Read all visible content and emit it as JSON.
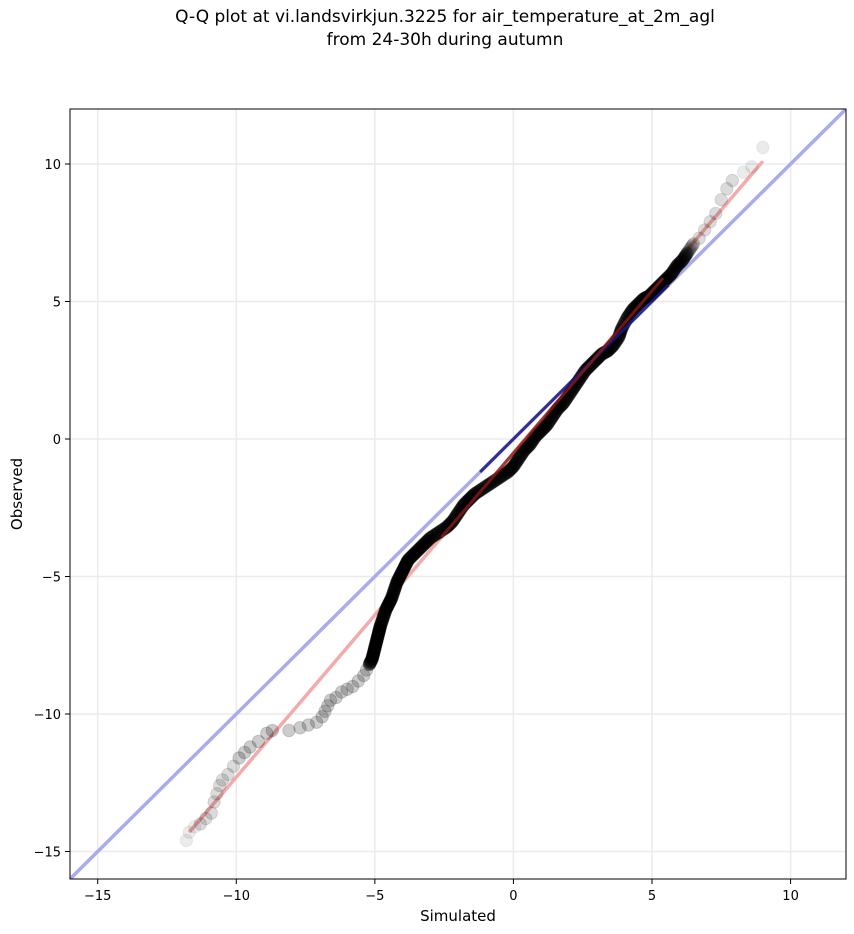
{
  "title_line1": "Q-Q plot at vi.landsvirkjun.3225 for air_temperature_at_2m_agl",
  "title_line2": "from 24-30h during autumn",
  "colors": {
    "identity_line": "#aaaaf0",
    "fit_line": "#f5aaaa",
    "points": "#000000",
    "center_line": "#1a1a80",
    "center_fit": "#8b1a1a",
    "grid": "#ebebeb"
  },
  "chart_data": {
    "type": "scatter",
    "title": "Q-Q plot at vi.landsvirkjun.3225 for air_temperature_at_2m_agl\nfrom 24-30h during autumn",
    "xlabel": "Simulated",
    "ylabel": "Observed",
    "xlim": [
      -16,
      12
    ],
    "ylim": [
      -16,
      12
    ],
    "xticks": [
      -15,
      -10,
      -5,
      0,
      5,
      10
    ],
    "yticks": [
      -15,
      -10,
      -5,
      0,
      5,
      10
    ],
    "grid": true,
    "identity_line": {
      "x": [
        -16,
        12
      ],
      "y": [
        -16,
        12
      ]
    },
    "fit_line": {
      "x": [
        -11.7,
        9.0
      ],
      "y": [
        -14.3,
        10.1
      ]
    },
    "quantiles": [
      [
        -11.8,
        -14.6
      ],
      [
        -11.7,
        -14.3
      ],
      [
        -11.5,
        -14.1
      ],
      [
        -11.3,
        -14.0
      ],
      [
        -11.1,
        -13.8
      ],
      [
        -10.9,
        -13.6
      ],
      [
        -10.8,
        -13.2
      ],
      [
        -10.7,
        -12.9
      ],
      [
        -10.6,
        -12.6
      ],
      [
        -10.5,
        -12.4
      ],
      [
        -10.3,
        -12.2
      ],
      [
        -10.1,
        -11.9
      ],
      [
        -9.9,
        -11.6
      ],
      [
        -9.7,
        -11.4
      ],
      [
        -9.5,
        -11.2
      ],
      [
        -9.2,
        -11.0
      ],
      [
        -8.9,
        -10.7
      ],
      [
        -8.7,
        -10.6
      ],
      [
        -8.1,
        -10.6
      ],
      [
        -7.7,
        -10.5
      ],
      [
        -7.4,
        -10.4
      ],
      [
        -7.1,
        -10.3
      ],
      [
        -6.9,
        -10.1
      ],
      [
        -6.8,
        -9.9
      ],
      [
        -6.7,
        -9.7
      ],
      [
        -6.6,
        -9.5
      ],
      [
        -6.4,
        -9.4
      ],
      [
        -6.2,
        -9.2
      ],
      [
        -6.0,
        -9.1
      ],
      [
        -5.8,
        -9.0
      ],
      [
        -5.6,
        -8.8
      ],
      [
        -5.4,
        -8.6
      ],
      [
        -5.3,
        -8.4
      ],
      [
        -5.2,
        -8.2
      ],
      [
        -5.1,
        -8.0
      ],
      [
        -5.05,
        -7.8
      ],
      [
        -5.0,
        -7.6
      ],
      [
        -4.95,
        -7.4
      ],
      [
        -4.9,
        -7.2
      ],
      [
        -4.85,
        -7.0
      ],
      [
        -4.8,
        -6.8
      ],
      [
        -4.7,
        -6.5
      ],
      [
        -4.6,
        -6.2
      ],
      [
        -4.5,
        -6.0
      ],
      [
        -4.4,
        -5.8
      ],
      [
        -4.3,
        -5.5
      ],
      [
        -4.2,
        -5.2
      ],
      [
        -4.1,
        -5.0
      ],
      [
        -4.0,
        -4.8
      ],
      [
        -3.9,
        -4.6
      ],
      [
        -3.8,
        -4.4
      ],
      [
        -3.6,
        -4.2
      ],
      [
        -3.4,
        -4.0
      ],
      [
        -3.2,
        -3.8
      ],
      [
        -3.0,
        -3.6
      ],
      [
        -2.7,
        -3.4
      ],
      [
        -2.4,
        -3.2
      ],
      [
        -2.2,
        -3.0
      ],
      [
        -2.0,
        -2.7
      ],
      [
        -1.8,
        -2.4
      ],
      [
        -1.6,
        -2.2
      ],
      [
        -1.4,
        -2.0
      ],
      [
        -1.1,
        -1.8
      ],
      [
        -0.8,
        -1.6
      ],
      [
        -0.5,
        -1.4
      ],
      [
        -0.2,
        -1.2
      ],
      [
        0.0,
        -1.0
      ],
      [
        0.2,
        -0.7
      ],
      [
        0.4,
        -0.4
      ],
      [
        0.6,
        -0.2
      ],
      [
        0.8,
        0.1
      ],
      [
        1.0,
        0.3
      ],
      [
        1.2,
        0.5
      ],
      [
        1.4,
        0.8
      ],
      [
        1.6,
        1.1
      ],
      [
        1.8,
        1.3
      ],
      [
        2.0,
        1.6
      ],
      [
        2.2,
        1.9
      ],
      [
        2.4,
        2.2
      ],
      [
        2.6,
        2.5
      ],
      [
        2.8,
        2.7
      ],
      [
        3.0,
        2.9
      ],
      [
        3.2,
        3.1
      ],
      [
        3.4,
        3.2
      ],
      [
        3.6,
        3.4
      ],
      [
        3.8,
        3.7
      ],
      [
        3.9,
        4.0
      ],
      [
        4.1,
        4.4
      ],
      [
        4.3,
        4.7
      ],
      [
        4.5,
        4.9
      ],
      [
        4.7,
        5.1
      ],
      [
        4.9,
        5.2
      ],
      [
        5.1,
        5.4
      ],
      [
        5.3,
        5.6
      ],
      [
        5.5,
        5.8
      ],
      [
        5.7,
        6.0
      ],
      [
        5.9,
        6.3
      ],
      [
        6.1,
        6.5
      ],
      [
        6.3,
        6.8
      ],
      [
        6.5,
        7.1
      ],
      [
        6.7,
        7.3
      ],
      [
        6.9,
        7.6
      ],
      [
        7.1,
        7.9
      ],
      [
        7.3,
        8.2
      ],
      [
        7.5,
        8.7
      ],
      [
        7.7,
        9.1
      ],
      [
        7.9,
        9.4
      ],
      [
        8.3,
        9.7
      ],
      [
        8.6,
        9.9
      ],
      [
        9.0,
        10.6
      ]
    ]
  }
}
